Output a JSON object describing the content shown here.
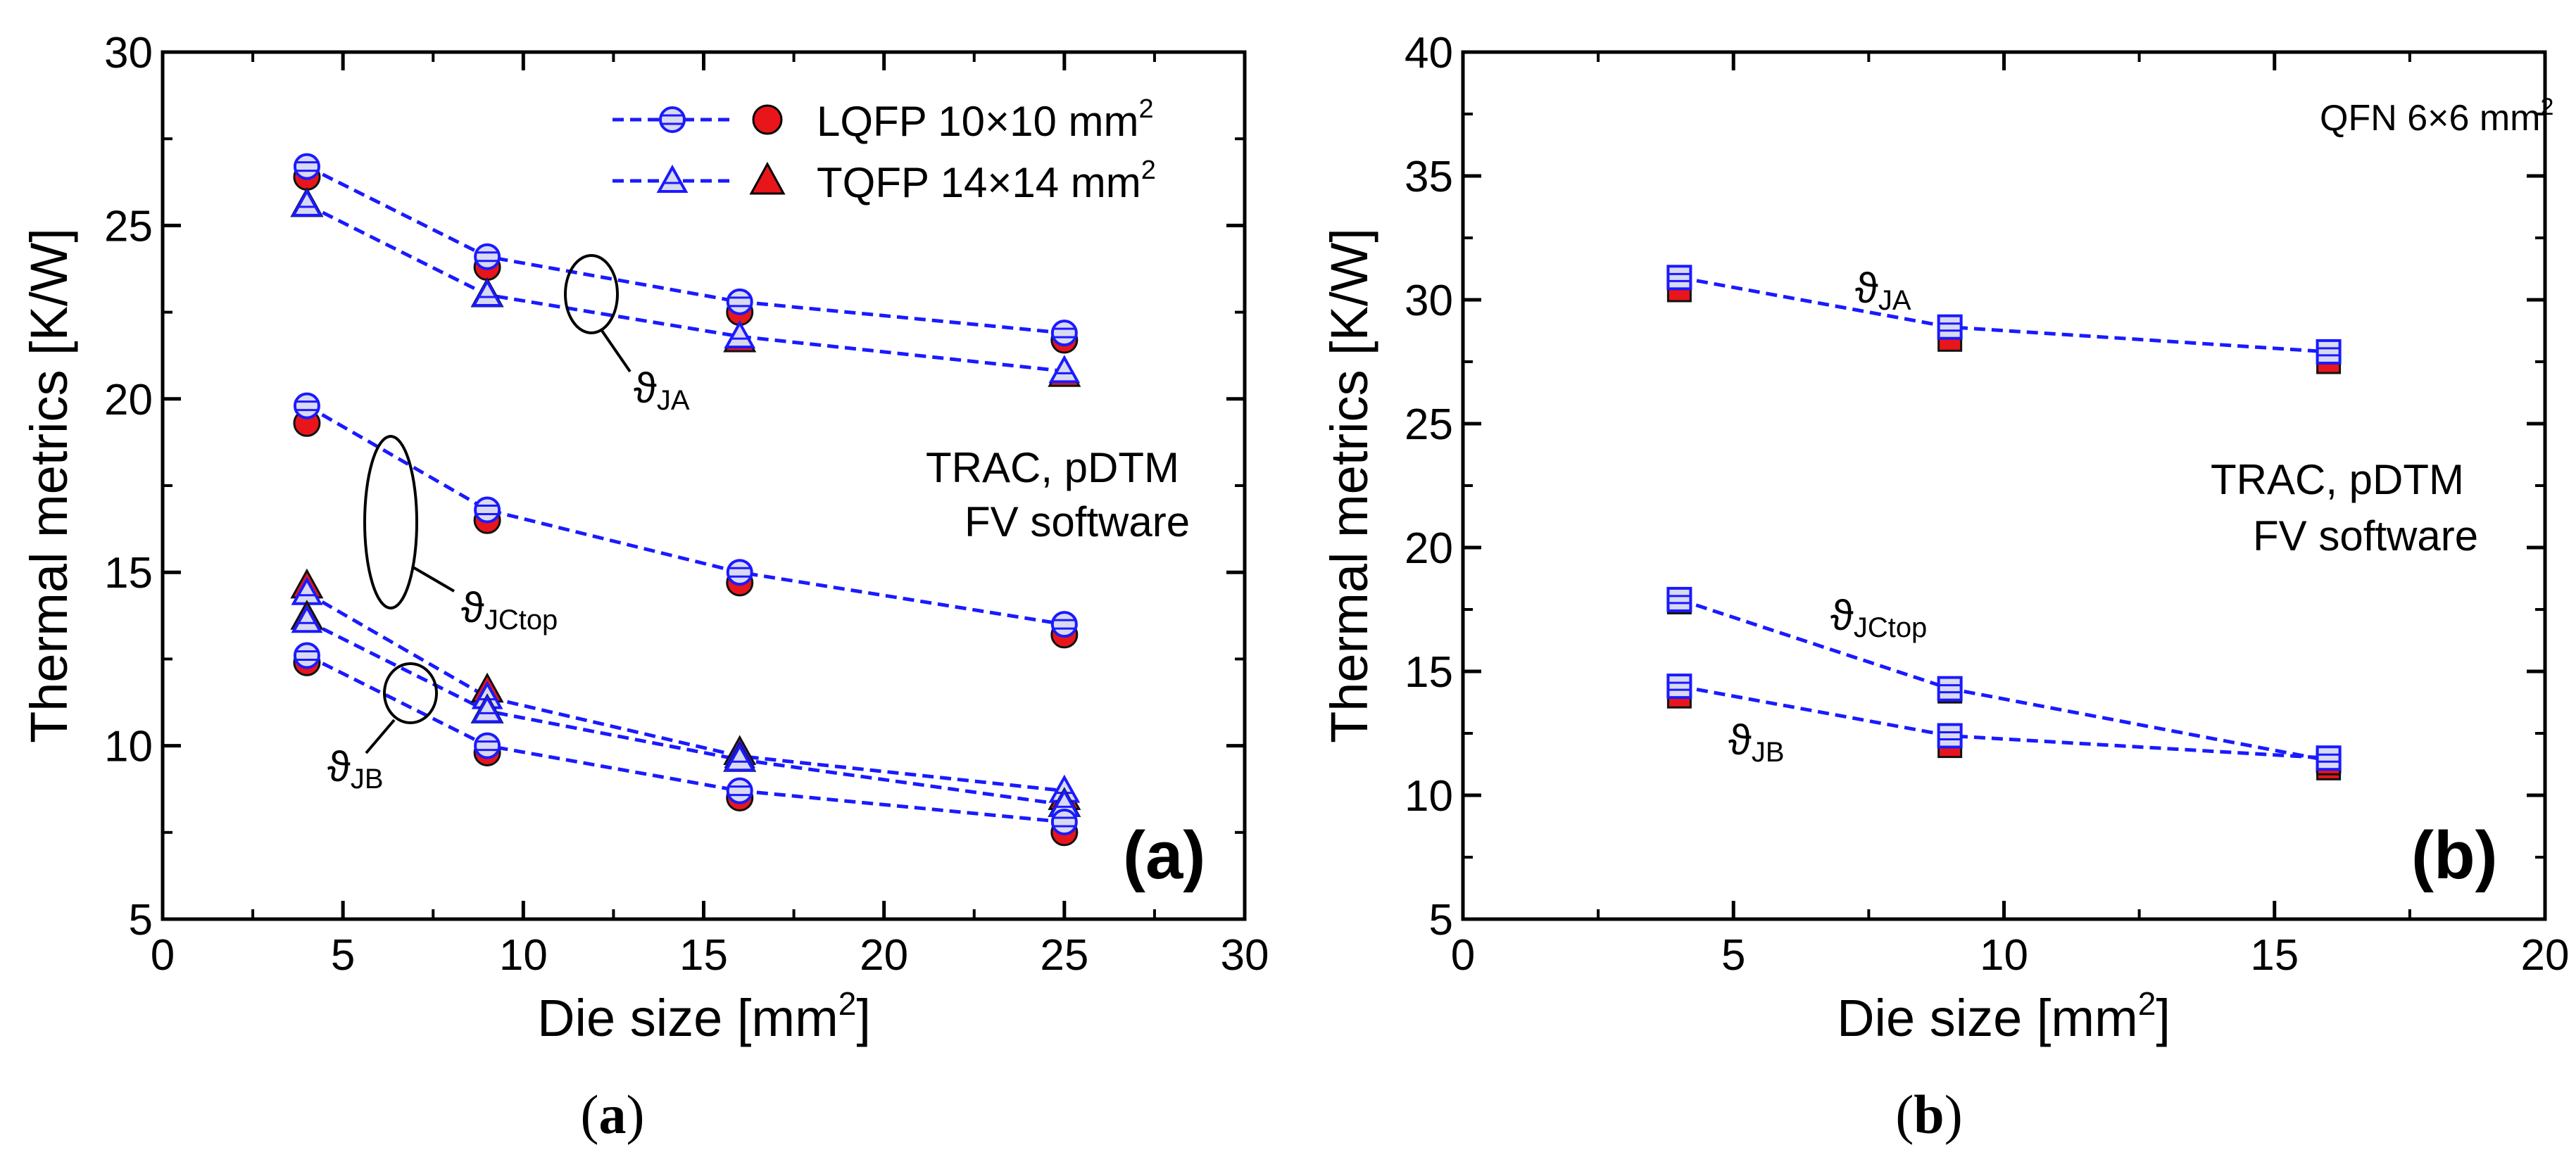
{
  "figure": {
    "caption_a_open": "(",
    "caption_a_letter": "a",
    "caption_a_close": ")",
    "caption_b_open": "(",
    "caption_b_letter": "b",
    "caption_b_close": ")"
  },
  "colors": {
    "model": "#1a1aff",
    "model_fill": "#d9d9f2",
    "reference": "#e8161b",
    "text_model": "#0000ff",
    "text_reference": "#ff0000"
  },
  "chart_data": [
    {
      "type": "scatter",
      "panel_label": "(a)",
      "xlabel": "Die size [mm",
      "xlabel_sup": "2",
      "xlabel_close": "]",
      "ylabel": "Thermal metrics [K/W]",
      "xlim": [
        0,
        30
      ],
      "ylim": [
        5,
        30
      ],
      "xticks": [
        0,
        5,
        10,
        15,
        20,
        25,
        30
      ],
      "yticks": [
        5,
        10,
        15,
        20,
        25,
        30
      ],
      "legend": {
        "placement": "top-right",
        "entries": [
          {
            "text": "LQFP 10×10 mm",
            "sup": "2",
            "marker": "circle"
          },
          {
            "text": "TQFP 14×14 mm",
            "sup": "2",
            "marker": "triangle"
          }
        ]
      },
      "annotations": {
        "trac": "TRAC, pDTM",
        "fv": "FV software",
        "theta": "ϑ",
        "ja": "JA",
        "jctop": "JCtop",
        "jb": "JB"
      },
      "series": [
        {
          "name": "LQFP ϑJA",
          "marker": "circle",
          "x": [
            4,
            9,
            16,
            25
          ],
          "model": [
            26.7,
            24.1,
            22.8,
            21.9
          ],
          "fv": [
            26.4,
            23.8,
            22.5,
            21.7
          ]
        },
        {
          "name": "TQFP ϑJA",
          "marker": "triangle",
          "x": [
            4,
            9,
            16,
            25
          ],
          "model": [
            25.6,
            23.0,
            21.8,
            20.8
          ],
          "fv": [
            25.6,
            23.0,
            21.7,
            20.7
          ]
        },
        {
          "name": "LQFP ϑJCtop",
          "marker": "circle",
          "x": [
            4,
            9,
            16,
            25
          ],
          "model": [
            19.8,
            16.8,
            15.0,
            13.5
          ],
          "fv": [
            19.3,
            16.5,
            14.7,
            13.2
          ]
        },
        {
          "name": "TQFP ϑJCtop",
          "marker": "triangle",
          "x": [
            4,
            9,
            16,
            25
          ],
          "model": [
            14.4,
            11.4,
            9.7,
            8.7
          ],
          "fv": [
            14.6,
            11.6,
            9.8,
            8.5
          ]
        },
        {
          "name": "TQFP ϑJB",
          "marker": "triangle",
          "x": [
            4,
            9,
            16,
            25
          ],
          "model": [
            13.6,
            11.0,
            9.6,
            8.3
          ],
          "fv": [
            13.7,
            11.0,
            9.6,
            8.3
          ]
        },
        {
          "name": "LQFP ϑJB",
          "marker": "circle",
          "x": [
            4,
            9,
            16,
            25
          ],
          "model": [
            12.6,
            10.0,
            8.7,
            7.8
          ],
          "fv": [
            12.4,
            9.8,
            8.5,
            7.5
          ]
        }
      ]
    },
    {
      "type": "scatter",
      "panel_label": "(b)",
      "xlabel": "Die size [mm",
      "xlabel_sup": "2",
      "xlabel_close": "]",
      "ylabel": "Thermal metrics [K/W]",
      "xlim": [
        0,
        20
      ],
      "ylim": [
        5,
        40
      ],
      "xticks": [
        0,
        5,
        10,
        15,
        20
      ],
      "yticks": [
        5,
        10,
        15,
        20,
        25,
        30,
        35,
        40
      ],
      "package_label": "QFN 6×6 mm",
      "package_label_sup": "2",
      "annotations": {
        "trac": "TRAC, pDTM",
        "fv": "FV software",
        "theta": "ϑ",
        "ja": "JA",
        "jctop": "JCtop",
        "jb": "JB"
      },
      "series": [
        {
          "name": "QFN ϑJA",
          "marker": "square",
          "x": [
            4,
            9,
            16
          ],
          "model": [
            30.9,
            28.9,
            27.9
          ],
          "fv": [
            30.4,
            28.4,
            27.5
          ]
        },
        {
          "name": "QFN ϑJCtop",
          "marker": "square",
          "x": [
            4,
            9,
            16
          ],
          "model": [
            17.9,
            14.3,
            11.4
          ],
          "fv": [
            17.8,
            14.2,
            11.1
          ]
        },
        {
          "name": "QFN ϑJB",
          "marker": "square",
          "x": [
            4,
            9,
            16
          ],
          "model": [
            14.4,
            12.4,
            11.5
          ],
          "fv": [
            14.0,
            12.0,
            11.3
          ]
        }
      ]
    }
  ]
}
